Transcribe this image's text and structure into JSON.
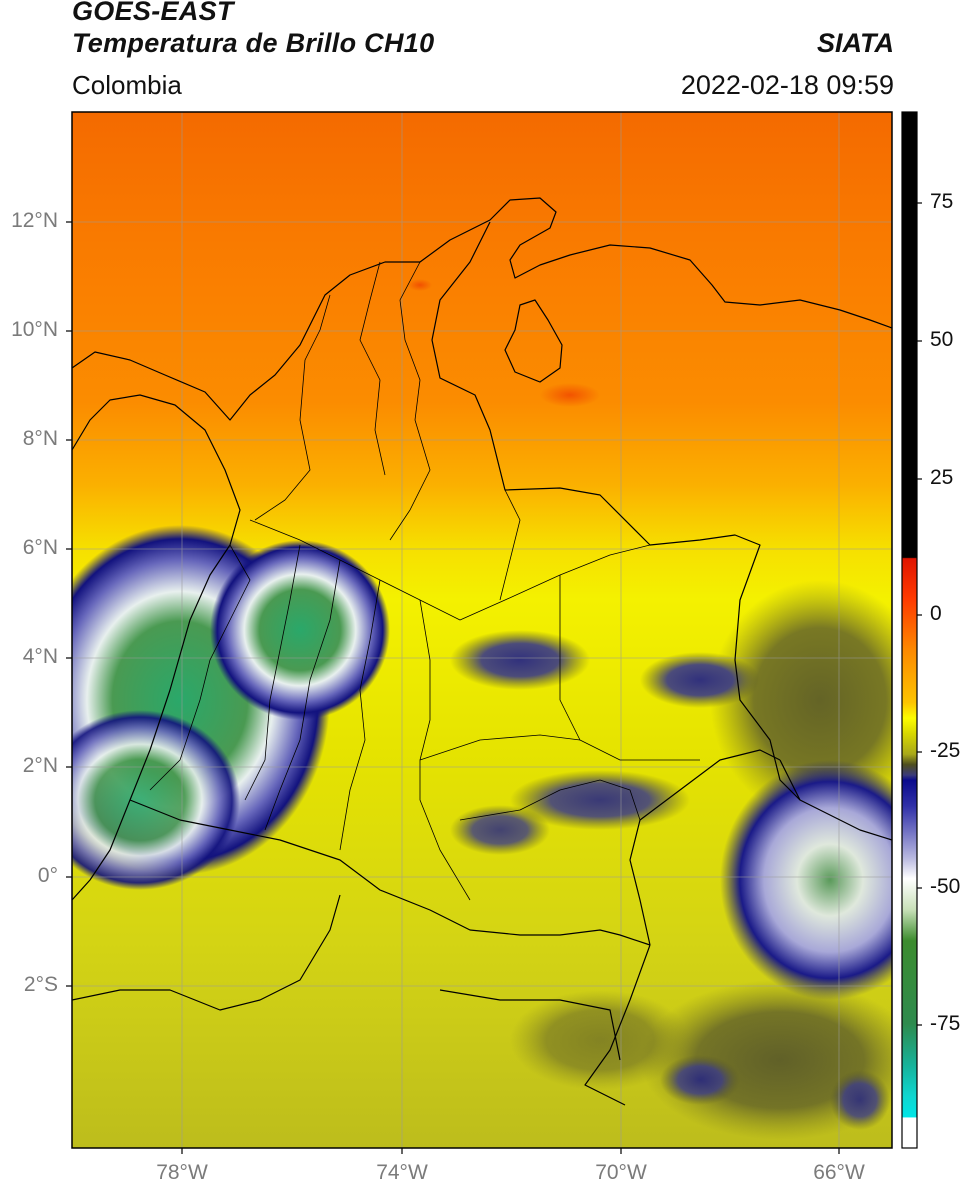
{
  "header": {
    "satellite": "GOES-EAST",
    "product": "Temperatura de Brillo CH10",
    "region": "Colombia",
    "agency": "SIATA",
    "datetime": "2022-02-18 09:59"
  },
  "map": {
    "lat_labels": [
      "12°N",
      "10°N",
      "8°N",
      "6°N",
      "4°N",
      "2°N",
      "0°",
      "2°S"
    ],
    "lat_values": [
      12,
      10,
      8,
      6,
      4,
      2,
      0,
      -2
    ],
    "lon_labels": [
      "78°W",
      "74°W",
      "70°W",
      "66°W"
    ],
    "lon_values": [
      -78,
      -74,
      -70,
      -66
    ],
    "extent": {
      "lon_min": -80,
      "lon_max": -65,
      "lat_min": -5,
      "lat_max": 14
    },
    "gridlines": true
  },
  "colorbar": {
    "tick_labels": [
      "75",
      "50",
      "25",
      "0",
      "-25",
      "-50",
      "-75"
    ],
    "tick_values": [
      75,
      50,
      25,
      0,
      -25,
      -50,
      -75
    ],
    "range": [
      -95,
      90
    ],
    "colors": {
      "warm_hot": "#000000",
      "red": "#e82000",
      "orange": "#fd8700",
      "yellow": "#fdfd00",
      "olive": "#4d4d1e",
      "navy": "#0a0a8c",
      "white": "#ffffff",
      "green": "#2e8b2e",
      "teal": "#17b29a",
      "cyan": "#00e5e5"
    }
  }
}
